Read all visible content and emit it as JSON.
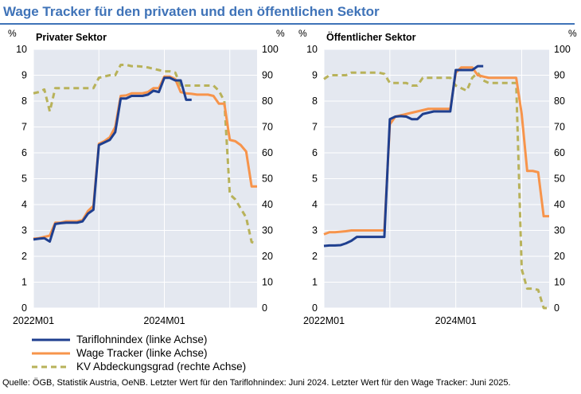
{
  "header": {
    "title": "Wage Tracker für den privaten und den öffentlichen Sektor"
  },
  "colors": {
    "title": "#3f73b8",
    "tariflohnindex": "#1f3f8f",
    "wage_tracker": "#f7944b",
    "kv": "#b8b25a",
    "plot_bg": "#e4e8f0",
    "grid": "#ffffff"
  },
  "legend": {
    "items": [
      {
        "label": "Tariflohnindex (linke Achse)",
        "style": "solid",
        "color": "#1f3f8f"
      },
      {
        "label": "Wage Tracker (linke Achse)",
        "style": "solid",
        "color": "#f7944b"
      },
      {
        "label": "KV Abdeckungsgrad (rechte Achse)",
        "style": "dashed",
        "color": "#b8b25a"
      }
    ]
  },
  "source": "Quelle: ÖGB, Statistik Austria, OeNB. Letzter Wert für den Tariflohnindex: Juni 2024. Letzter Wert für den Wage Tracker: Juni 2025.",
  "chart_data": [
    {
      "type": "line",
      "title": "Privater Sektor",
      "left_unit": "%",
      "right_unit": "%",
      "ylim": [
        0,
        10
      ],
      "y2lim": [
        0,
        100
      ],
      "y_ticks": [
        "0",
        "1",
        "2",
        "3",
        "4",
        "5",
        "6",
        "7",
        "8",
        "9",
        "10"
      ],
      "y2_ticks": [
        "0",
        "10",
        "20",
        "30",
        "40",
        "50",
        "60",
        "70",
        "80",
        "90",
        "100"
      ],
      "x_range": [
        "2022M01",
        "2025M06"
      ],
      "x_tick_labels": [
        {
          "label": "2022M01",
          "at": "2022M01"
        },
        {
          "label": "2024M01",
          "at": "2024M01"
        }
      ],
      "x_gridlines": [
        "2022M01",
        "2023M01",
        "2024M01",
        "2025M01"
      ],
      "grid": true,
      "series": [
        {
          "name": "Tariflohnindex (linke Achse)",
          "axis": "left",
          "points": [
            [
              "2022M01",
              2.65
            ],
            [
              "2022M02",
              2.68
            ],
            [
              "2022M03",
              2.7
            ],
            [
              "2022M04",
              2.57
            ],
            [
              "2022M05",
              3.25
            ],
            [
              "2022M06",
              3.28
            ],
            [
              "2022M07",
              3.3
            ],
            [
              "2022M08",
              3.3
            ],
            [
              "2022M09",
              3.3
            ],
            [
              "2022M10",
              3.35
            ],
            [
              "2022M11",
              3.65
            ],
            [
              "2022M12",
              3.8
            ],
            [
              "2023M01",
              6.3
            ],
            [
              "2023M02",
              6.4
            ],
            [
              "2023M03",
              6.5
            ],
            [
              "2023M04",
              6.8
            ],
            [
              "2023M05",
              8.1
            ],
            [
              "2023M06",
              8.1
            ],
            [
              "2023M07",
              8.2
            ],
            [
              "2023M08",
              8.2
            ],
            [
              "2023M09",
              8.2
            ],
            [
              "2023M10",
              8.25
            ],
            [
              "2023M11",
              8.4
            ],
            [
              "2023M12",
              8.35
            ],
            [
              "2024M01",
              8.9
            ],
            [
              "2024M02",
              8.9
            ],
            [
              "2024M03",
              8.8
            ],
            [
              "2024M04",
              8.8
            ],
            [
              "2024M05",
              8.05
            ],
            [
              "2024M06",
              8.05
            ]
          ]
        },
        {
          "name": "Wage Tracker (linke Achse)",
          "axis": "left",
          "points": [
            [
              "2022M01",
              2.68
            ],
            [
              "2022M02",
              2.7
            ],
            [
              "2022M03",
              2.75
            ],
            [
              "2022M04",
              2.8
            ],
            [
              "2022M05",
              3.3
            ],
            [
              "2022M06",
              3.3
            ],
            [
              "2022M07",
              3.35
            ],
            [
              "2022M08",
              3.35
            ],
            [
              "2022M09",
              3.35
            ],
            [
              "2022M10",
              3.4
            ],
            [
              "2022M11",
              3.75
            ],
            [
              "2022M12",
              3.95
            ],
            [
              "2023M01",
              6.35
            ],
            [
              "2023M02",
              6.45
            ],
            [
              "2023M03",
              6.6
            ],
            [
              "2023M04",
              7.0
            ],
            [
              "2023M05",
              8.2
            ],
            [
              "2023M06",
              8.22
            ],
            [
              "2023M07",
              8.3
            ],
            [
              "2023M08",
              8.3
            ],
            [
              "2023M09",
              8.3
            ],
            [
              "2023M10",
              8.35
            ],
            [
              "2023M11",
              8.5
            ],
            [
              "2023M12",
              8.5
            ],
            [
              "2024M01",
              8.95
            ],
            [
              "2024M02",
              8.95
            ],
            [
              "2024M03",
              8.85
            ],
            [
              "2024M04",
              8.35
            ],
            [
              "2024M05",
              8.3
            ],
            [
              "2024M06",
              8.28
            ],
            [
              "2024M07",
              8.25
            ],
            [
              "2024M08",
              8.25
            ],
            [
              "2024M09",
              8.25
            ],
            [
              "2024M10",
              8.2
            ],
            [
              "2024M11",
              7.9
            ],
            [
              "2024M12",
              7.9
            ],
            [
              "2025M01",
              6.5
            ],
            [
              "2025M02",
              6.45
            ],
            [
              "2025M03",
              6.3
            ],
            [
              "2025M04",
              6.05
            ],
            [
              "2025M05",
              4.7
            ],
            [
              "2025M06",
              4.7
            ]
          ]
        },
        {
          "name": "KV Abdeckungsgrad (rechte Achse)",
          "axis": "right",
          "points": [
            [
              "2022M01",
              83
            ],
            [
              "2022M02",
              83.5
            ],
            [
              "2022M03",
              84.5
            ],
            [
              "2022M04",
              76
            ],
            [
              "2022M05",
              85
            ],
            [
              "2022M06",
              85
            ],
            [
              "2022M07",
              85
            ],
            [
              "2022M08",
              85
            ],
            [
              "2022M09",
              85
            ],
            [
              "2022M10",
              85
            ],
            [
              "2022M11",
              85
            ],
            [
              "2022M12",
              85
            ],
            [
              "2023M01",
              89
            ],
            [
              "2023M02",
              89.5
            ],
            [
              "2023M03",
              90
            ],
            [
              "2023M04",
              90
            ],
            [
              "2023M05",
              94
            ],
            [
              "2023M06",
              94
            ],
            [
              "2023M07",
              93.5
            ],
            [
              "2023M08",
              93.5
            ],
            [
              "2023M09",
              93.3
            ],
            [
              "2023M10",
              93
            ],
            [
              "2023M11",
              92.5
            ],
            [
              "2023M12",
              92
            ],
            [
              "2024M01",
              91.5
            ],
            [
              "2024M02",
              91.5
            ],
            [
              "2024M03",
              91
            ],
            [
              "2024M04",
              86
            ],
            [
              "2024M05",
              86
            ],
            [
              "2024M06",
              86
            ],
            [
              "2024M07",
              86
            ],
            [
              "2024M08",
              86
            ],
            [
              "2024M09",
              86
            ],
            [
              "2024M10",
              86
            ],
            [
              "2024M11",
              84
            ],
            [
              "2024M12",
              80
            ],
            [
              "2025M01",
              44
            ],
            [
              "2025M02",
              42
            ],
            [
              "2025M03",
              38.5
            ],
            [
              "2025M04",
              35
            ],
            [
              "2025M05",
              25.5
            ],
            [
              "2025M06",
              25
            ]
          ]
        }
      ]
    },
    {
      "type": "line",
      "title": "Öffentlicher Sektor",
      "left_unit": "%",
      "right_unit": "%",
      "ylim": [
        0,
        10
      ],
      "y2lim": [
        0,
        100
      ],
      "y_ticks": [
        "0",
        "1",
        "2",
        "3",
        "4",
        "5",
        "6",
        "7",
        "8",
        "9",
        "10"
      ],
      "y2_ticks": [
        "0",
        "10",
        "20",
        "30",
        "40",
        "50",
        "60",
        "70",
        "80",
        "90",
        "100"
      ],
      "x_range": [
        "2022M01",
        "2025M06"
      ],
      "x_tick_labels": [
        {
          "label": "2022M01",
          "at": "2022M01"
        },
        {
          "label": "2024M01",
          "at": "2024M01"
        }
      ],
      "x_gridlines": [
        "2022M01",
        "2023M01",
        "2024M01",
        "2025M01"
      ],
      "grid": true,
      "series": [
        {
          "name": "Tariflohnindex (linke Achse)",
          "axis": "left",
          "points": [
            [
              "2022M01",
              2.4
            ],
            [
              "2022M02",
              2.42
            ],
            [
              "2022M03",
              2.42
            ],
            [
              "2022M04",
              2.43
            ],
            [
              "2022M05",
              2.5
            ],
            [
              "2022M06",
              2.6
            ],
            [
              "2022M07",
              2.75
            ],
            [
              "2022M08",
              2.75
            ],
            [
              "2022M09",
              2.75
            ],
            [
              "2022M10",
              2.75
            ],
            [
              "2022M11",
              2.75
            ],
            [
              "2022M12",
              2.75
            ],
            [
              "2023M01",
              7.3
            ],
            [
              "2023M02",
              7.4
            ],
            [
              "2023M03",
              7.42
            ],
            [
              "2023M04",
              7.4
            ],
            [
              "2023M05",
              7.3
            ],
            [
              "2023M06",
              7.3
            ],
            [
              "2023M07",
              7.5
            ],
            [
              "2023M08",
              7.55
            ],
            [
              "2023M09",
              7.6
            ],
            [
              "2023M10",
              7.6
            ],
            [
              "2023M11",
              7.6
            ],
            [
              "2023M12",
              7.6
            ],
            [
              "2024M01",
              9.2
            ],
            [
              "2024M02",
              9.2
            ],
            [
              "2024M03",
              9.2
            ],
            [
              "2024M04",
              9.2
            ],
            [
              "2024M05",
              9.35
            ],
            [
              "2024M06",
              9.35
            ]
          ]
        },
        {
          "name": "Wage Tracker (linke Achse)",
          "axis": "left",
          "points": [
            [
              "2022M01",
              2.85
            ],
            [
              "2022M02",
              2.93
            ],
            [
              "2022M03",
              2.93
            ],
            [
              "2022M04",
              2.95
            ],
            [
              "2022M05",
              2.97
            ],
            [
              "2022M06",
              3.0
            ],
            [
              "2022M07",
              3.0
            ],
            [
              "2022M08",
              3.0
            ],
            [
              "2022M09",
              3.0
            ],
            [
              "2022M10",
              3.0
            ],
            [
              "2022M11",
              3.0
            ],
            [
              "2022M12",
              3.0
            ],
            [
              "2023M01",
              7.1
            ],
            [
              "2023M02",
              7.4
            ],
            [
              "2023M03",
              7.45
            ],
            [
              "2023M04",
              7.5
            ],
            [
              "2023M05",
              7.55
            ],
            [
              "2023M06",
              7.6
            ],
            [
              "2023M07",
              7.65
            ],
            [
              "2023M08",
              7.7
            ],
            [
              "2023M09",
              7.7
            ],
            [
              "2023M10",
              7.7
            ],
            [
              "2023M11",
              7.7
            ],
            [
              "2023M12",
              7.7
            ],
            [
              "2024M01",
              9.1
            ],
            [
              "2024M02",
              9.3
            ],
            [
              "2024M03",
              9.3
            ],
            [
              "2024M04",
              9.3
            ],
            [
              "2024M05",
              9.0
            ],
            [
              "2024M06",
              8.95
            ],
            [
              "2024M07",
              8.9
            ],
            [
              "2024M08",
              8.9
            ],
            [
              "2024M09",
              8.9
            ],
            [
              "2024M10",
              8.9
            ],
            [
              "2024M11",
              8.9
            ],
            [
              "2024M12",
              8.9
            ],
            [
              "2025M01",
              7.5
            ],
            [
              "2025M02",
              5.3
            ],
            [
              "2025M03",
              5.3
            ],
            [
              "2025M04",
              5.25
            ],
            [
              "2025M05",
              3.55
            ],
            [
              "2025M06",
              3.55
            ]
          ]
        },
        {
          "name": "KV Abdeckungsgrad (rechte Achse)",
          "axis": "right",
          "points": [
            [
              "2022M01",
              88.5
            ],
            [
              "2022M02",
              90
            ],
            [
              "2022M03",
              90
            ],
            [
              "2022M04",
              90
            ],
            [
              "2022M05",
              90
            ],
            [
              "2022M06",
              91
            ],
            [
              "2022M07",
              91
            ],
            [
              "2022M08",
              91
            ],
            [
              "2022M09",
              91
            ],
            [
              "2022M10",
              91
            ],
            [
              "2022M11",
              91
            ],
            [
              "2022M12",
              90.5
            ],
            [
              "2023M01",
              87
            ],
            [
              "2023M02",
              87
            ],
            [
              "2023M03",
              87
            ],
            [
              "2023M04",
              87
            ],
            [
              "2023M05",
              86
            ],
            [
              "2023M06",
              86
            ],
            [
              "2023M07",
              89
            ],
            [
              "2023M08",
              89
            ],
            [
              "2023M09",
              89
            ],
            [
              "2023M10",
              89
            ],
            [
              "2023M11",
              89
            ],
            [
              "2023M12",
              89
            ],
            [
              "2024M01",
              86
            ],
            [
              "2024M02",
              85
            ],
            [
              "2024M03",
              84
            ],
            [
              "2024M04",
              89
            ],
            [
              "2024M05",
              91
            ],
            [
              "2024M06",
              88
            ],
            [
              "2024M07",
              87
            ],
            [
              "2024M08",
              87
            ],
            [
              "2024M09",
              87
            ],
            [
              "2024M10",
              87
            ],
            [
              "2024M11",
              87
            ],
            [
              "2024M12",
              87
            ],
            [
              "2025M01",
              15
            ],
            [
              "2025M02",
              7.5
            ],
            [
              "2025M03",
              7.5
            ],
            [
              "2025M04",
              7
            ],
            [
              "2025M05",
              0
            ],
            [
              "2025M06",
              0
            ]
          ]
        }
      ]
    }
  ]
}
